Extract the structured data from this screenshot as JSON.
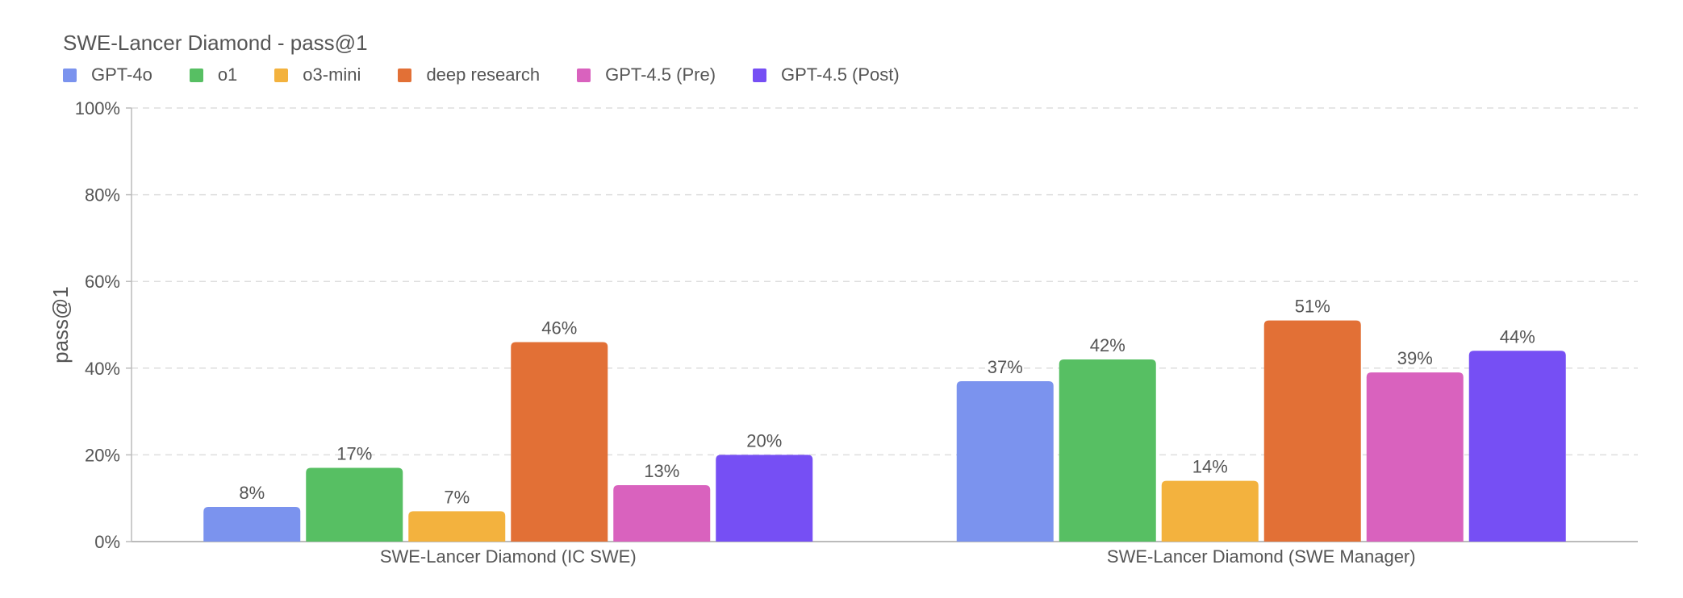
{
  "chart_data": {
    "type": "bar",
    "title": "SWE-Lancer Diamond - pass@1",
    "ylabel": "pass@1",
    "xlabel": "",
    "ylim": [
      0,
      100
    ],
    "yticks": [
      {
        "value": 0,
        "label": "0%"
      },
      {
        "value": 20,
        "label": "20%"
      },
      {
        "value": 40,
        "label": "40%"
      },
      {
        "value": 60,
        "label": "60%"
      },
      {
        "value": 80,
        "label": "80%"
      },
      {
        "value": 100,
        "label": "100%"
      }
    ],
    "grid": true,
    "legend_position": "top-left",
    "categories": [
      "SWE-Lancer Diamond (IC SWE)",
      "SWE-Lancer Diamond (SWE Manager)"
    ],
    "series": [
      {
        "name": "GPT-4o",
        "color": "#7B93EE",
        "values": [
          8,
          37
        ],
        "labels": [
          "8%",
          "37%"
        ]
      },
      {
        "name": "o1",
        "color": "#57BF63",
        "values": [
          17,
          42
        ],
        "labels": [
          "17%",
          "42%"
        ]
      },
      {
        "name": "o3-mini",
        "color": "#F3B23E",
        "values": [
          7,
          14
        ],
        "labels": [
          "7%",
          "14%"
        ]
      },
      {
        "name": "deep research",
        "color": "#E27036",
        "values": [
          46,
          51
        ],
        "labels": [
          "46%",
          "51%"
        ]
      },
      {
        "name": "GPT-4.5 (Pre)",
        "color": "#D962BE",
        "values": [
          13,
          39
        ],
        "labels": [
          "13%",
          "39%"
        ]
      },
      {
        "name": "GPT-4.5 (Post)",
        "color": "#764FF4",
        "values": [
          20,
          44
        ],
        "labels": [
          "20%",
          "44%"
        ]
      }
    ]
  }
}
